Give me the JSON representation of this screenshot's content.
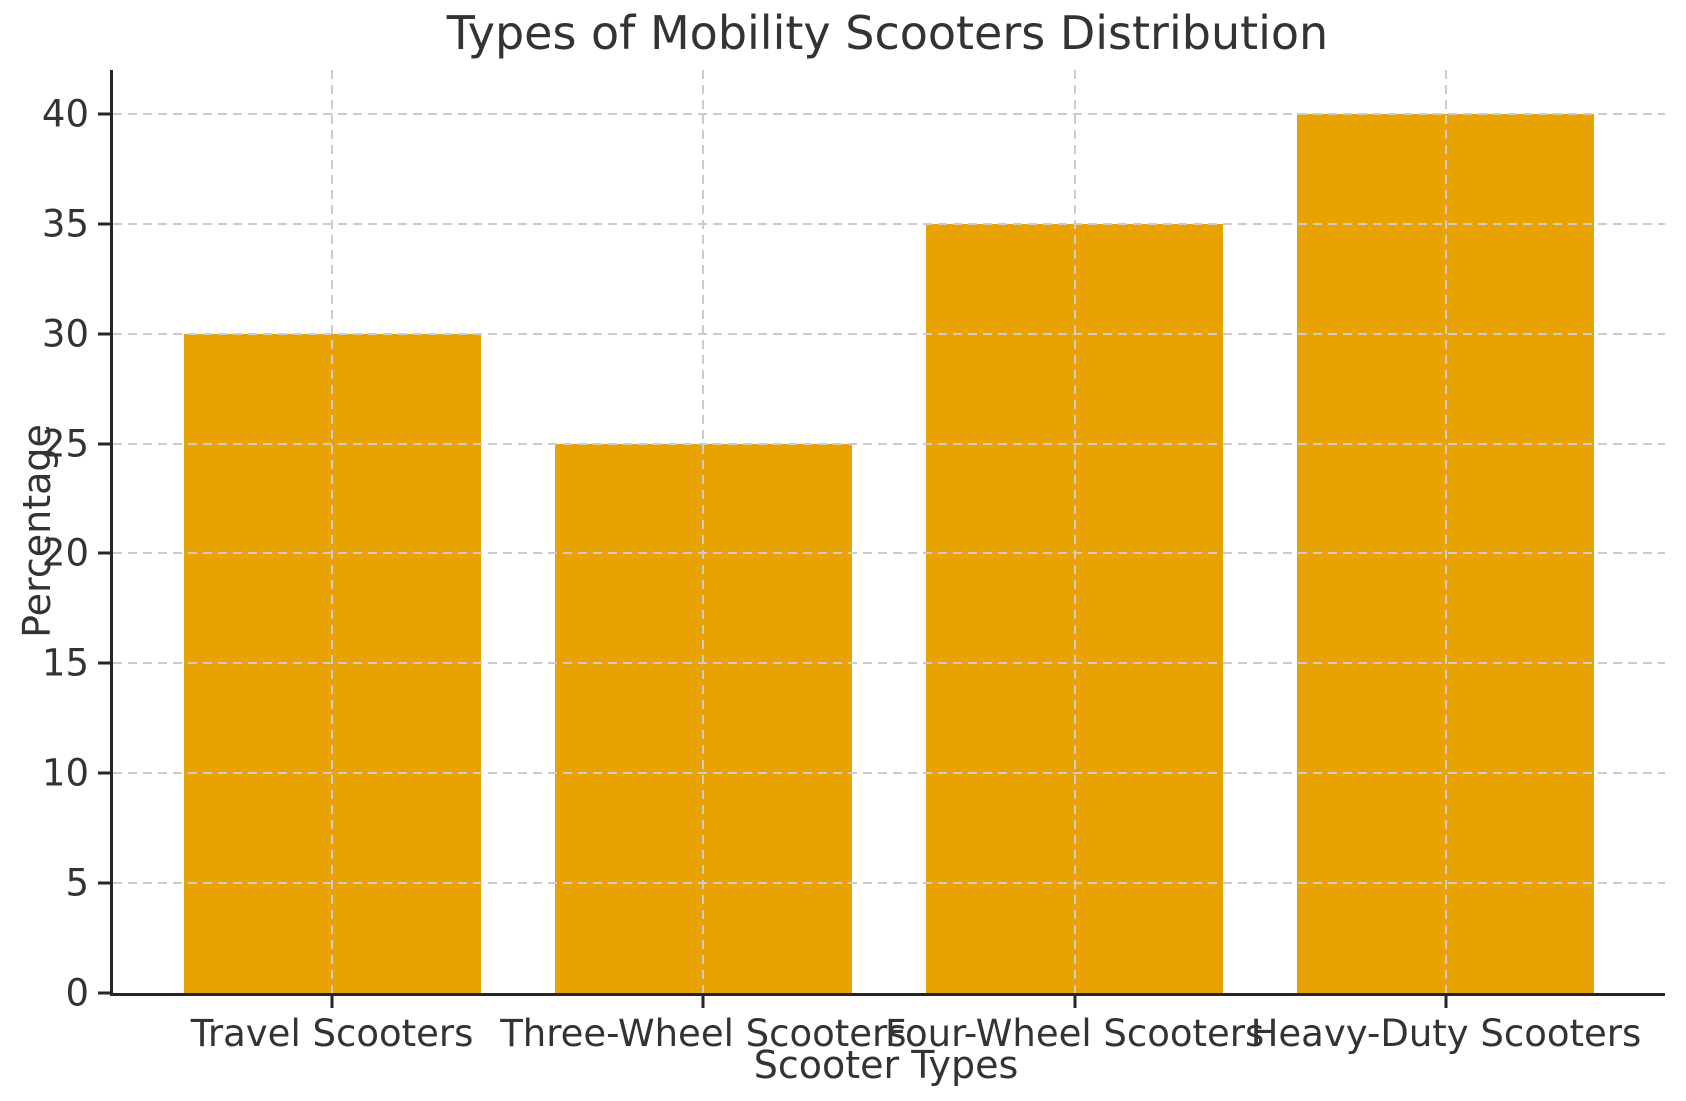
{
  "chart_data": {
    "type": "bar",
    "title": "Types of Mobility Scooters Distribution",
    "xlabel": "Scooter Types",
    "ylabel": "Percentage",
    "categories": [
      "Travel Scooters",
      "Three-Wheel Scooters",
      "Four-Wheel Scooters",
      "Heavy-Duty Scooters"
    ],
    "values": [
      30,
      25,
      35,
      40
    ],
    "yticks": [
      0,
      5,
      10,
      15,
      20,
      25,
      30,
      35,
      40
    ],
    "ylim": [
      0,
      42
    ],
    "bar_color": "#E8A202",
    "grid": true,
    "grid_color": "#cccccc",
    "grid_line_style": "dashed",
    "grid_above_bars": true,
    "axis_color": "#262626",
    "text_color": "#333333",
    "legend": "none",
    "bar_width_fraction": 0.8
  }
}
